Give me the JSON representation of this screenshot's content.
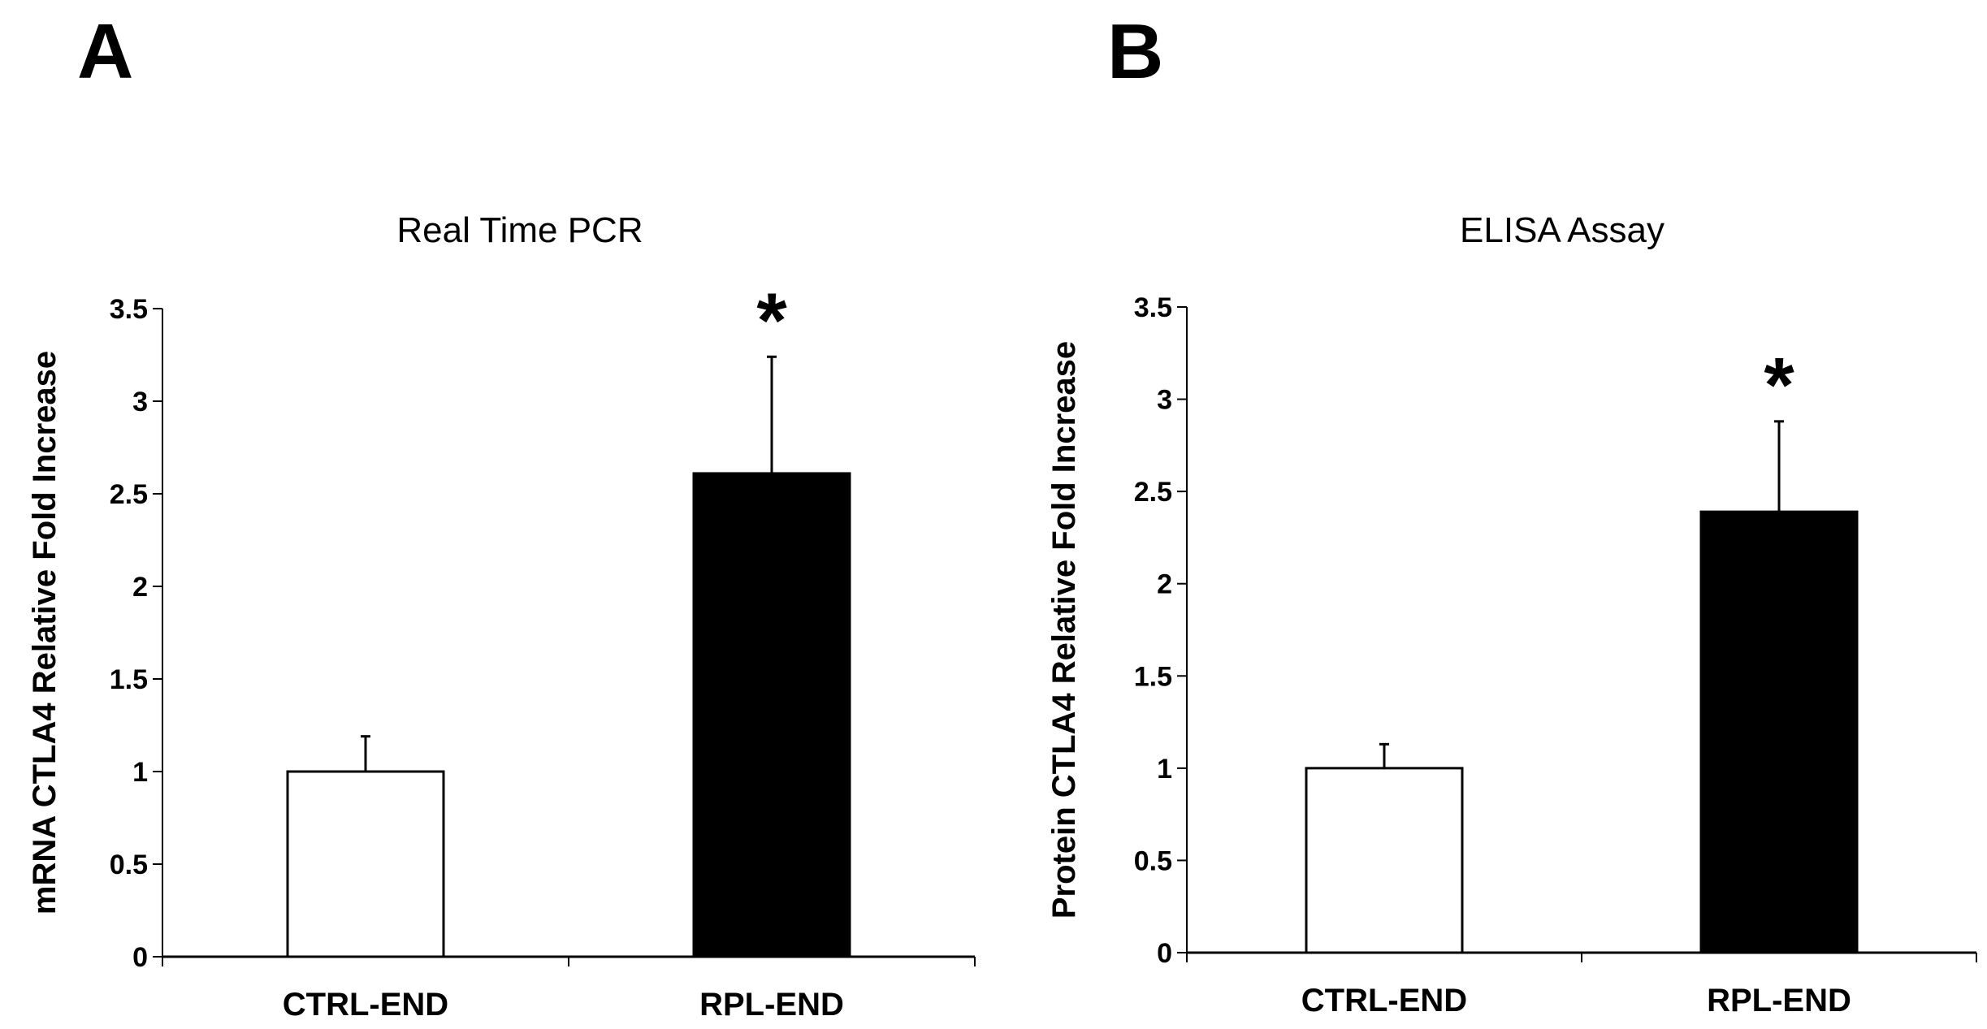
{
  "chart_data": [
    {
      "type": "bar",
      "panel_label": "A",
      "title": "Real Time PCR",
      "ylabel": "mRNA CTLA4 Relative Fold Increase",
      "xlabel": "",
      "categories": [
        "CTRL-END",
        "RPL-END"
      ],
      "values": [
        1.0,
        2.61
      ],
      "error_plus": [
        0.19,
        0.63
      ],
      "colors": [
        "#ffffff",
        "#000000"
      ],
      "annotations": [
        "",
        "*"
      ],
      "ylim": [
        0,
        3.5
      ],
      "yticks": [
        "0",
        "0.5",
        "1",
        "1.5",
        "2",
        "2.5",
        "3",
        "3.5"
      ],
      "grid": false,
      "legend": "none"
    },
    {
      "type": "bar",
      "panel_label": "B",
      "title": "ELISA Assay",
      "ylabel": "Protein CTLA4 Relative Fold Increase",
      "xlabel": "",
      "categories": [
        "CTRL-END",
        "RPL-END"
      ],
      "values": [
        1.0,
        2.39
      ],
      "error_plus": [
        0.13,
        0.49
      ],
      "colors": [
        "#ffffff",
        "#000000"
      ],
      "annotations": [
        "",
        "*"
      ],
      "ylim": [
        0,
        3.5
      ],
      "yticks": [
        "0",
        "0.5",
        "1",
        "1.5",
        "2",
        "2.5",
        "3",
        "3.5"
      ],
      "grid": false,
      "legend": "none"
    }
  ]
}
